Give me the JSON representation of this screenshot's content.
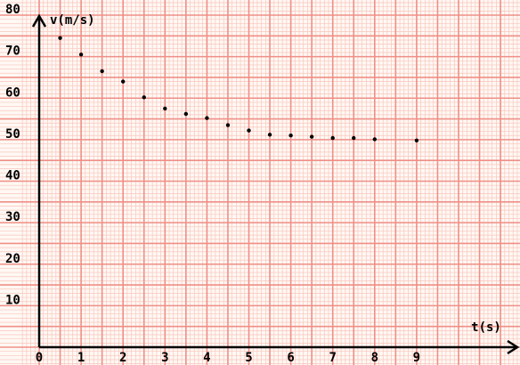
{
  "chart_data": {
    "type": "scatter",
    "title": "",
    "xlabel": "t(s)",
    "ylabel": "v(m/s)",
    "xlim": [
      0,
      11.2
    ],
    "ylim": [
      0,
      80
    ],
    "grid": true,
    "x_ticks": [
      0,
      1,
      2,
      3,
      4,
      5,
      6,
      7,
      8,
      9
    ],
    "x_tick_labels": [
      "0",
      "1",
      "2",
      "3",
      "4",
      "5",
      "6",
      "7",
      "8",
      "9"
    ],
    "y_ticks": [
      10,
      20,
      30,
      40,
      50,
      60,
      70,
      80
    ],
    "y_tick_labels": [
      "10",
      "20",
      "30",
      "40",
      "50",
      "60",
      "70",
      "80"
    ],
    "series": [
      {
        "x": [
          0.5,
          1,
          1.5,
          2,
          2.5,
          3,
          3.5,
          4,
          4.5,
          5,
          5.5,
          6,
          6.5,
          7,
          7.5,
          8,
          9
        ],
        "y": [
          74.5,
          70.5,
          66.5,
          64,
          60.2,
          57.5,
          56.2,
          55.2,
          53.5,
          52.2,
          51.2,
          51,
          50.7,
          50.4,
          50.4,
          50.1,
          49.8
        ]
      }
    ],
    "colors": {
      "background": "#fff8f4",
      "grid_minor": "#f9c6bc",
      "grid_major": "#ef8f86",
      "axis": "#000000",
      "marker": "#000000"
    }
  }
}
